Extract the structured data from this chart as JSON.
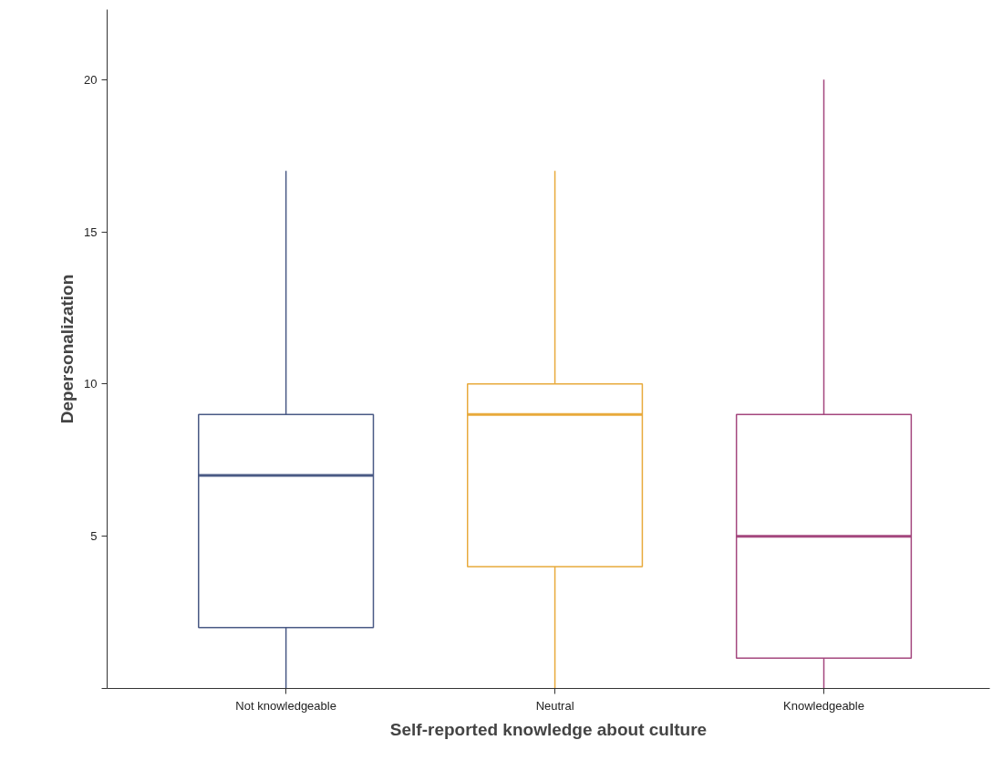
{
  "chart_data": {
    "type": "box",
    "xlabel": "Self-reported knowledge about culture",
    "ylabel": "Depersonalization",
    "categories": [
      "Not knowledgeable",
      "Neutral",
      "Knowledgeable"
    ],
    "colors": [
      "#4a5a85",
      "#e8aa3c",
      "#a4477e"
    ],
    "boxes": [
      {
        "low": 0,
        "q1": 2,
        "median": 7,
        "q3": 9,
        "high": 17
      },
      {
        "low": 0,
        "q1": 4,
        "median": 9,
        "q3": 10,
        "high": 17
      },
      {
        "low": 0,
        "q1": 1,
        "median": 5,
        "q3": 9,
        "high": 20
      }
    ],
    "ylim": [
      0,
      22.3
    ],
    "yticks": [
      {
        "value": 0,
        "label": null
      },
      5,
      10,
      15,
      20
    ],
    "grid": false
  }
}
